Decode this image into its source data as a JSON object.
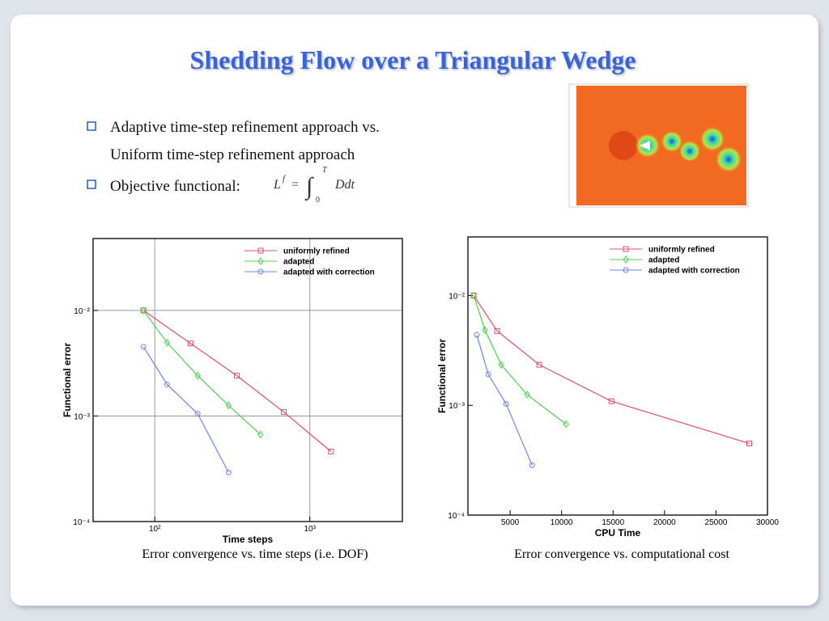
{
  "slide": {
    "title": "Shedding Flow over a Triangular Wedge",
    "bullets": [
      "Adaptive time-step refinement approach vs.",
      "Uniform time-step refinement approach",
      "Objective functional:"
    ],
    "formula": {
      "lhs": "L",
      "lhs_sup": "f",
      "equals": "=",
      "integral": "∫",
      "lower": "0",
      "upper": "T",
      "integrand": "Ddt"
    },
    "captions": [
      "Error convergence vs. time steps (i.e. DOF)",
      "Error convergence vs. computational cost"
    ]
  },
  "chart_data": [
    {
      "type": "line",
      "xlabel": "Time steps",
      "ylabel": "Functional error",
      "xscale": "log",
      "yscale": "log",
      "grid": true,
      "legend": "upper right",
      "xlim": [
        40,
        3950
      ],
      "ylim": [
        0.0001,
        0.048
      ],
      "xticks": [
        {
          "value": 100,
          "label": "10²"
        },
        {
          "value": 1000,
          "label": "10³"
        }
      ],
      "yticks": [
        {
          "value": 0.0001,
          "label": "10⁻⁴"
        },
        {
          "value": 0.001,
          "label": "10⁻³"
        },
        {
          "value": 0.01,
          "label": "10⁻²"
        }
      ],
      "series": [
        {
          "name": "uniformly refined",
          "color": "#e0506a",
          "marker": "square",
          "x": [
            84.5,
            170,
            338,
            679,
            1368
          ],
          "values": [
            0.01,
            0.00487,
            0.00241,
            0.00109,
            0.000461
          ]
        },
        {
          "name": "adapted",
          "color": "#4cd04c",
          "marker": "diamond",
          "x": [
            84.5,
            120,
            189,
            299,
            480
          ],
          "values": [
            0.01,
            0.00495,
            0.00241,
            0.00126,
            0.000667
          ]
        },
        {
          "name": "adapted with correction",
          "color": "#6f86e8",
          "marker": "circle",
          "x": [
            84.5,
            120,
            189,
            299
          ],
          "values": [
            0.00453,
            0.00199,
            0.00105,
            0.000292
          ]
        }
      ]
    },
    {
      "type": "line",
      "xlabel": "CPU Time",
      "ylabel": "Functional error",
      "xscale": "linear",
      "yscale": "log",
      "grid": false,
      "legend": "upper right",
      "xlim": [
        900,
        30000
      ],
      "ylim": [
        0.0001,
        0.0342
      ],
      "xticks": [
        5000,
        10000,
        15000,
        20000,
        25000,
        30000
      ],
      "yticks": [
        {
          "value": 0.0001,
          "label": "10⁻⁴"
        },
        {
          "value": 0.001,
          "label": "10⁻³"
        },
        {
          "value": 0.01,
          "label": "10⁻²"
        }
      ],
      "series": [
        {
          "name": "uniformly refined",
          "color": "#e0506a",
          "marker": "square",
          "x": [
            1457,
            3740,
            7830,
            14840,
            28230
          ],
          "values": [
            0.01,
            0.00475,
            0.00234,
            0.00109,
            0.000449
          ]
        },
        {
          "name": "adapted",
          "color": "#4cd04c",
          "marker": "diamond",
          "x": [
            1457,
            2560,
            4130,
            6650,
            10430
          ],
          "values": [
            0.01,
            0.00484,
            0.00234,
            0.00125,
            0.000673
          ]
        },
        {
          "name": "adapted with correction",
          "color": "#6f86e8",
          "marker": "circle",
          "x": [
            1770,
            2870,
            4610,
            7130
          ],
          "values": [
            0.00438,
            0.00192,
            0.00103,
            0.000285
          ]
        }
      ]
    }
  ]
}
